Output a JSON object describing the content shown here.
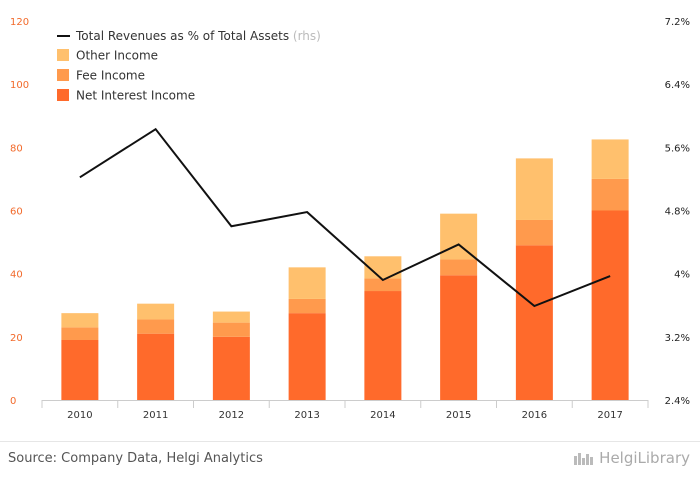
{
  "chart_data": {
    "type": "bar",
    "stacked": true,
    "categories": [
      "2010",
      "2011",
      "2012",
      "2013",
      "2014",
      "2015",
      "2016",
      "2017"
    ],
    "series": [
      {
        "name": "Net Interest Income",
        "color": "#ff6a2b",
        "values": [
          19,
          21,
          20,
          27.5,
          34.5,
          39.5,
          49,
          60
        ]
      },
      {
        "name": "Fee Income",
        "color": "#ff9a4d",
        "values": [
          4,
          4.5,
          4.5,
          4.5,
          4,
          5,
          8,
          10
        ]
      },
      {
        "name": "Other Income",
        "color": "#ffc06d",
        "values": [
          4.5,
          5,
          3.5,
          10,
          7,
          14.5,
          19.5,
          12.5
        ]
      }
    ],
    "line": {
      "name": "Total Revenues as % of Total Assets",
      "note": "(rhs)",
      "color": "#111111",
      "values": [
        5.22,
        5.83,
        4.6,
        4.78,
        3.92,
        4.37,
        3.59,
        3.97
      ]
    },
    "y_left": {
      "min": 0,
      "max": 120,
      "ticks": [
        "0",
        "20",
        "40",
        "60",
        "80",
        "100",
        "120"
      ]
    },
    "y_right": {
      "min": 2.4,
      "max": 7.2,
      "ticks": [
        "2.4%",
        "3.2%",
        "4%",
        "4.8%",
        "5.6%",
        "6.4%",
        "7.2%"
      ]
    },
    "legend_position": "top-left",
    "grid": false
  },
  "footer": {
    "source": "Source: Company Data, Helgi Analytics",
    "brand": "HelgiLibrary"
  }
}
